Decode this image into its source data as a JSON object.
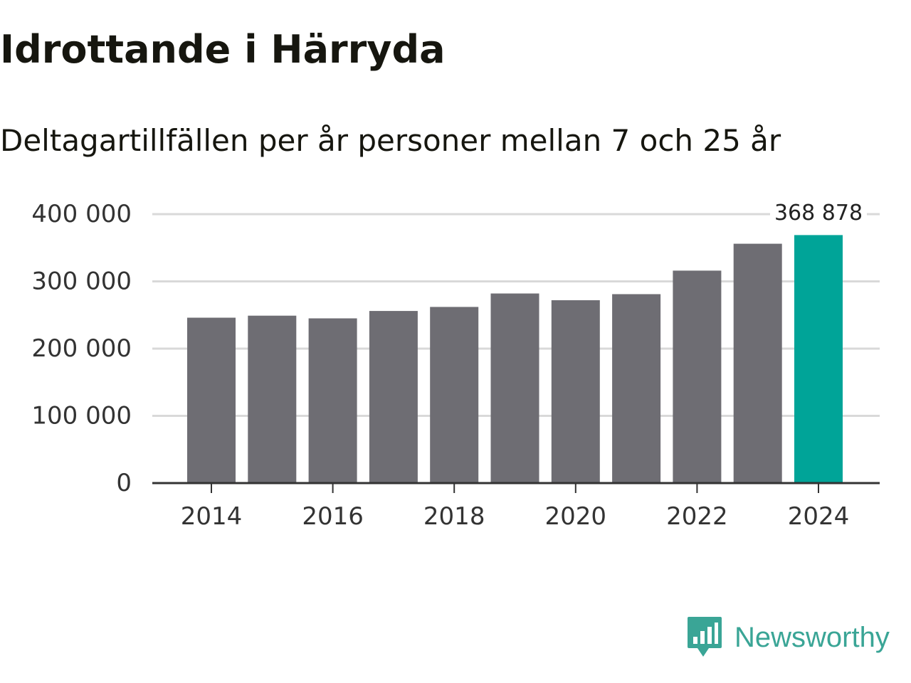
{
  "title": "Idrottande i Härryda",
  "subtitle": "Deltagartillfällen per år personer mellan 7 och 25 år",
  "brand": {
    "name": "Newsworthy",
    "color": "#3aa596",
    "icon": "newsworthy-bar-chart-bubble-icon"
  },
  "colors": {
    "bar": "#6e6d73",
    "highlight": "#00a498",
    "grid": "#d9d9d9",
    "axis": "#333333"
  },
  "chart_data": {
    "type": "bar",
    "title": "Idrottande i Härryda",
    "subtitle": "Deltagartillfällen per år personer mellan 7 och 25 år",
    "xlabel": "",
    "ylabel": "",
    "categories": [
      "2014",
      "2015",
      "2016",
      "2017",
      "2018",
      "2019",
      "2020",
      "2021",
      "2022",
      "2023",
      "2024"
    ],
    "values": [
      246000,
      249000,
      245000,
      256000,
      262000,
      282000,
      272000,
      281000,
      316000,
      356000,
      368878
    ],
    "highlight_index": 10,
    "highlight_label": "368 878",
    "ylim": [
      0,
      400000
    ],
    "yticks": [
      0,
      100000,
      200000,
      300000,
      400000
    ],
    "ytick_labels": [
      "0",
      "100 000",
      "200 000",
      "300 000",
      "400 000"
    ],
    "xtick_labels": [
      "2014",
      "2016",
      "2018",
      "2020",
      "2022",
      "2024"
    ],
    "grid": true
  }
}
